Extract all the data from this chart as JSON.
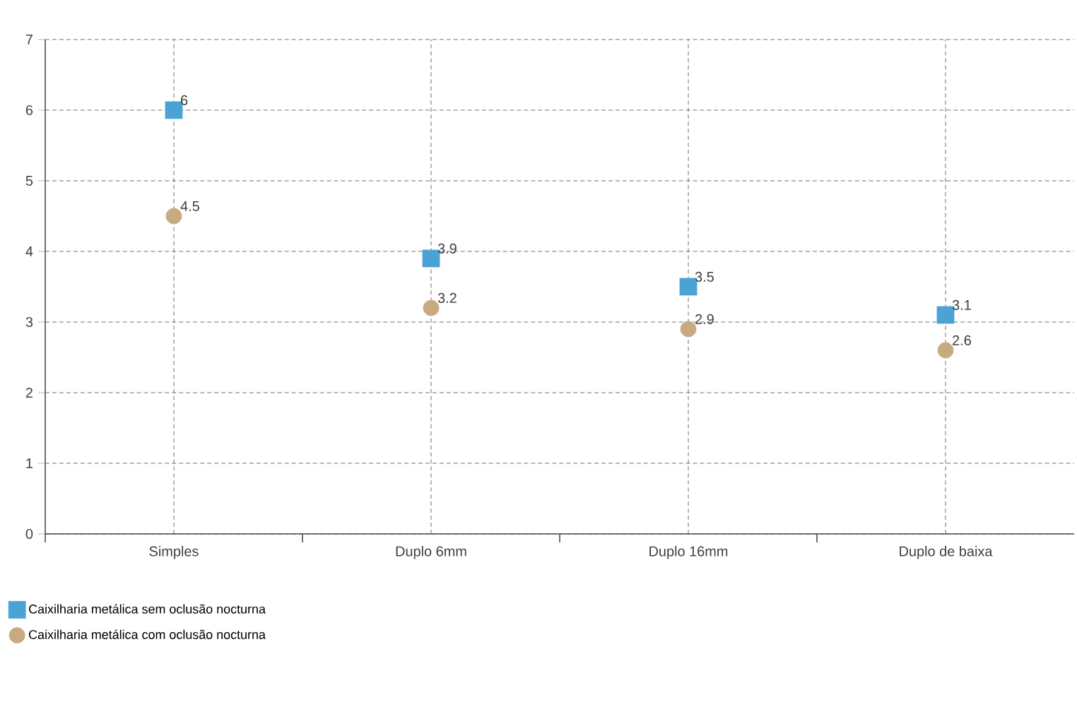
{
  "chart_data": {
    "type": "scatter",
    "categories": [
      "Simples",
      "Duplo 6mm",
      "Duplo 16mm",
      "Duplo de baixa"
    ],
    "series": [
      {
        "name": "Caixilharia metálica sem oclusão nocturna",
        "color": "#4aa3d4",
        "marker": "square",
        "values": [
          6,
          3.9,
          3.5,
          3.1
        ]
      },
      {
        "name": "Caixilharia metálica com oclusão nocturna",
        "color": "#c8aa80",
        "marker": "circle",
        "values": [
          4.5,
          3.2,
          2.9,
          2.6
        ]
      }
    ],
    "ylim": [
      0,
      7
    ],
    "yticks": [
      0,
      1,
      2,
      3,
      4,
      5,
      6,
      7
    ],
    "grid": true,
    "legend": "bottom left",
    "data_labels": true
  }
}
